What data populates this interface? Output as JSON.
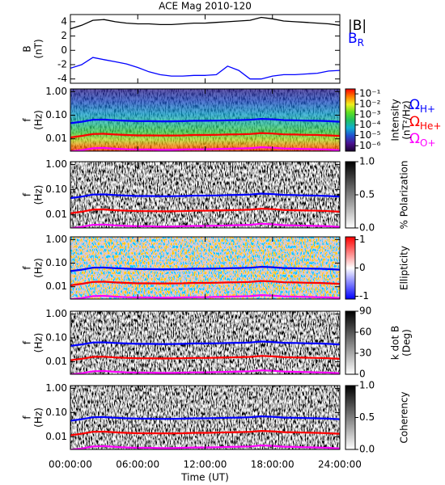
{
  "chart_data": [
    {
      "type": "line",
      "title": "ACE Mag 2010-120",
      "ylabel": [
        "B",
        "(nT)"
      ],
      "x": [
        0,
        1,
        2,
        3,
        4,
        5,
        6,
        7,
        8,
        9,
        10,
        11,
        12,
        13,
        14,
        15,
        16,
        17,
        18,
        19,
        20,
        21,
        22,
        23,
        24
      ],
      "xlim": [
        0,
        24
      ],
      "ylim": [
        -4.6,
        5
      ],
      "yticks": [
        -4,
        -2,
        0,
        2,
        4
      ],
      "series": [
        {
          "name": "|B|",
          "color": "#000000",
          "values": [
            3,
            3.5,
            4.2,
            4.3,
            4.0,
            3.8,
            3.7,
            3.7,
            3.6,
            3.6,
            3.7,
            3.8,
            3.8,
            3.9,
            4.0,
            4.1,
            4.2,
            4.6,
            4.4,
            4.1,
            4.0,
            3.9,
            3.8,
            3.7,
            3.5
          ]
        },
        {
          "name": "B",
          "name_subscript": "R",
          "color": "#0000ff",
          "values": [
            -2.5,
            -2.0,
            -1.0,
            -1.3,
            -1.6,
            -1.9,
            -2.4,
            -3.0,
            -3.4,
            -3.6,
            -3.6,
            -3.5,
            -3.5,
            -3.4,
            -2.2,
            -2.8,
            -4.0,
            -4.0,
            -3.6,
            -3.4,
            -3.4,
            -3.3,
            -3.2,
            -2.9,
            -2.8
          ]
        }
      ]
    },
    {
      "type": "heatmap",
      "texture": "intensity",
      "ylabel": [
        "f",
        "(Hz)"
      ],
      "log_y": true,
      "xlim": [
        0,
        24
      ],
      "ylim": [
        0.003,
        1.3
      ],
      "yticks": [
        {
          "value": 1,
          "label": "1.00"
        },
        {
          "value": 0.1,
          "label": "0.10"
        },
        {
          "value": 0.01,
          "label": "0.01"
        }
      ],
      "x": [
        0,
        1,
        2,
        3,
        4,
        5,
        6,
        7,
        8,
        9,
        10,
        11,
        12,
        13,
        14,
        15,
        16,
        17,
        18,
        19,
        20,
        21,
        22,
        23,
        24
      ],
      "series": [
        {
          "name": "Ω",
          "name_subscript": "H+",
          "color": "#0000ff",
          "values": [
            0.046,
            0.053,
            0.064,
            0.065,
            0.061,
            0.058,
            0.056,
            0.056,
            0.055,
            0.055,
            0.056,
            0.058,
            0.058,
            0.059,
            0.061,
            0.062,
            0.064,
            0.07,
            0.067,
            0.062,
            0.061,
            0.059,
            0.058,
            0.056,
            0.053
          ]
        },
        {
          "name": "Ω",
          "name_subscript": "He+",
          "color": "#ff0000",
          "values": [
            0.0115,
            0.0133,
            0.016,
            0.0163,
            0.0152,
            0.0145,
            0.014,
            0.014,
            0.0138,
            0.0138,
            0.014,
            0.0145,
            0.0145,
            0.0148,
            0.0152,
            0.0155,
            0.016,
            0.0175,
            0.0168,
            0.0155,
            0.0152,
            0.0148,
            0.0145,
            0.014,
            0.0133
          ]
        },
        {
          "name": "Ω",
          "name_subscript": "O+",
          "color": "#ff00ff",
          "values": [
            0.0029,
            0.0033,
            0.004,
            0.0041,
            0.0038,
            0.0036,
            0.0035,
            0.0035,
            0.0034,
            0.0034,
            0.0035,
            0.0036,
            0.0036,
            0.0037,
            0.0038,
            0.0039,
            0.004,
            0.0044,
            0.0042,
            0.0039,
            0.0038,
            0.0037,
            0.0036,
            0.0035,
            0.0033
          ]
        }
      ],
      "colorbar": {
        "label": [
          "Intensity",
          "(nT²/Hz)"
        ],
        "log": true,
        "lim": [
          3e-07,
          0.3
        ],
        "ticks": [
          {
            "value": 0.1,
            "label": "10⁻¹"
          },
          {
            "value": 0.01,
            "label": "10⁻²"
          },
          {
            "value": 0.001,
            "label": "10⁻³"
          },
          {
            "value": 0.0001,
            "label": "10⁻⁴"
          },
          {
            "value": 1e-05,
            "label": "10⁻⁵"
          },
          {
            "value": 1e-06,
            "label": "10⁻⁶"
          }
        ],
        "colors": [
          "#1a0030",
          "#4b1090",
          "#2050d0",
          "#10b0d0",
          "#20c060",
          "#60e020",
          "#f0f020",
          "#ff8000",
          "#ff0000"
        ]
      }
    },
    {
      "type": "heatmap",
      "texture": "gray",
      "ylabel": [
        "f",
        "(Hz)"
      ],
      "log_y": true,
      "xlim": [
        0,
        24
      ],
      "ylim": [
        0.003,
        1.3
      ],
      "yticks": [
        {
          "value": 1,
          "label": "1.00"
        },
        {
          "value": 0.1,
          "label": "0.10"
        },
        {
          "value": 0.01,
          "label": "0.01"
        }
      ],
      "colorbar": {
        "label": [
          "% Polarization"
        ],
        "lim": [
          0,
          1
        ],
        "ticks": [
          {
            "value": 0,
            "label": "0.0"
          },
          0.5,
          {
            "value": 1,
            "label": "1.0"
          }
        ],
        "colors": [
          "#ffffff",
          "#000000"
        ]
      }
    },
    {
      "type": "heatmap",
      "texture": "redblue",
      "ylabel": [
        "f",
        "(Hz)"
      ],
      "log_y": true,
      "xlim": [
        0,
        24
      ],
      "ylim": [
        0.003,
        1.3
      ],
      "yticks": [
        {
          "value": 1,
          "label": "1.00"
        },
        {
          "value": 0.1,
          "label": "0.10"
        },
        {
          "value": 0.01,
          "label": "0.01"
        }
      ],
      "colorbar": {
        "label": [
          "Ellipticity"
        ],
        "lim": [
          -1.1,
          1.1
        ],
        "ticks": [
          -1,
          0,
          1
        ],
        "colors": [
          "#0000ff",
          "#ffffff",
          "#ff0000"
        ]
      }
    },
    {
      "type": "heatmap",
      "texture": "gray",
      "ylabel": [
        "f",
        "(Hz)"
      ],
      "log_y": true,
      "xlim": [
        0,
        24
      ],
      "ylim": [
        0.003,
        1.3
      ],
      "yticks": [
        {
          "value": 1,
          "label": "1.00"
        },
        {
          "value": 0.1,
          "label": "0.10"
        },
        {
          "value": 0.01,
          "label": "0.01"
        }
      ],
      "colorbar": {
        "label": [
          "k dot B",
          "(Deg)"
        ],
        "lim": [
          0,
          90
        ],
        "ticks": [
          0,
          30,
          60,
          90
        ],
        "colors": [
          "#ffffff",
          "#000000"
        ]
      }
    },
    {
      "type": "heatmap",
      "texture": "gray",
      "ylabel": [
        "f",
        "(Hz)"
      ],
      "log_y": true,
      "xlim": [
        0,
        24
      ],
      "ylim": [
        0.003,
        1.3
      ],
      "yticks": [
        {
          "value": 1,
          "label": "1.00"
        },
        {
          "value": 0.1,
          "label": "0.10"
        },
        {
          "value": 0.01,
          "label": "0.01"
        }
      ],
      "colorbar": {
        "label": [
          "Coherency"
        ],
        "lim": [
          0,
          1
        ],
        "ticks": [
          {
            "value": 0,
            "label": "0.0"
          },
          0.5,
          {
            "value": 1,
            "label": "1.0"
          }
        ],
        "colors": [
          "#ffffff",
          "#000000"
        ]
      },
      "xticks": [
        {
          "value": 0,
          "label": "00:00:00"
        },
        {
          "value": 6,
          "label": "06:00:00"
        },
        {
          "value": 12,
          "label": "12:00:00"
        },
        {
          "value": 18,
          "label": "18:00:00"
        },
        {
          "value": 24,
          "label": "24:00:00"
        }
      ],
      "xlabel": "Time (UT)"
    }
  ]
}
